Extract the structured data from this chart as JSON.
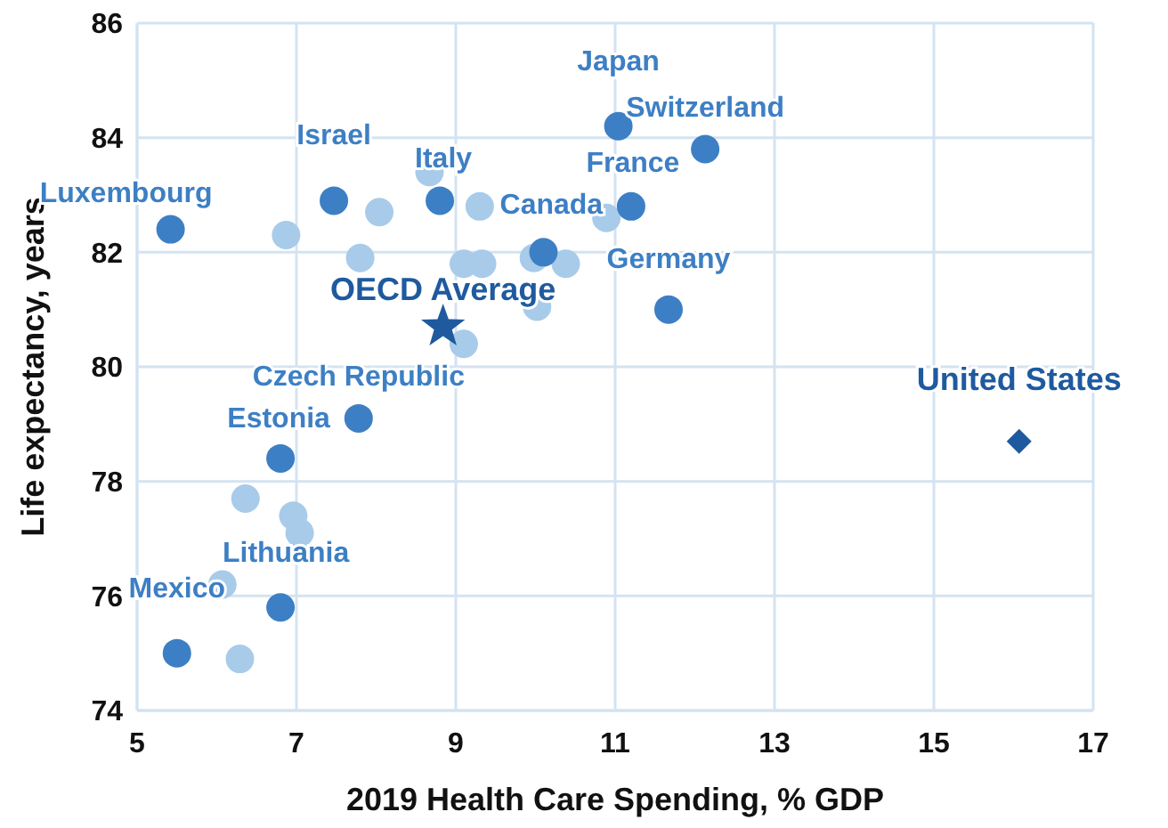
{
  "chart_data": {
    "type": "scatter",
    "xlabel": "2019 Health Care Spending, % GDP",
    "ylabel": "Life expectancy, years",
    "xlim": [
      5,
      17
    ],
    "xticks": [
      5,
      7,
      9,
      11,
      13,
      15,
      17
    ],
    "ylim": [
      74,
      86
    ],
    "yticks": [
      74,
      76,
      78,
      80,
      82,
      84,
      86
    ],
    "grid": true,
    "series": [
      {
        "color": "#a8cbea",
        "marker": "circle",
        "x": [
          6.87,
          8.04,
          7.8,
          8.67,
          9.3,
          9.1,
          9.33,
          9.98,
          10.38,
          10.02,
          9.1,
          10.89,
          6.36,
          6.96,
          7.04,
          6.07,
          6.29
        ],
        "values": [
          82.3,
          82.7,
          81.9,
          83.4,
          82.8,
          81.8,
          81.8,
          81.9,
          81.8,
          81.05,
          80.4,
          82.6,
          77.7,
          77.4,
          77.1,
          76.2,
          74.9
        ]
      },
      {
        "color": "#3d7fc4",
        "marker": "circle",
        "x": [
          5.42,
          7.47,
          8.8,
          11.04,
          12.13,
          11.2,
          11.67,
          10.1,
          7.78,
          6.8,
          6.8,
          5.5
        ],
        "values": [
          82.4,
          82.9,
          82.9,
          84.2,
          83.8,
          82.8,
          81.0,
          82.0,
          79.1,
          78.4,
          75.8,
          75.0
        ]
      },
      {
        "color": "#1f5a9e",
        "marker": "star",
        "x": [
          8.84
        ],
        "values": [
          80.7
        ]
      },
      {
        "color": "#1f5a9e",
        "marker": "diamond",
        "x": [
          16.07
        ],
        "values": [
          78.7
        ]
      }
    ],
    "annotations": [
      {
        "text": "Japan",
        "x": 11.04,
        "y": 84.2
      },
      {
        "text": "Switzerland",
        "x": 12.13,
        "y": 83.8
      },
      {
        "text": "Israel",
        "x": 7.47,
        "y": 82.9
      },
      {
        "text": "Italy",
        "x": 8.8,
        "y": 82.9
      },
      {
        "text": "Luxembourg",
        "x": 5.42,
        "y": 82.4
      },
      {
        "text": "Canada",
        "x": 10.89,
        "y": 82.6
      },
      {
        "text": "France",
        "x": 11.2,
        "y": 82.8
      },
      {
        "text": "Germany",
        "x": 11.67,
        "y": 81.0
      },
      {
        "text": "OECD Average",
        "x": 8.84,
        "y": 80.7
      },
      {
        "text": "Czech Republic",
        "x": 7.78,
        "y": 79.1
      },
      {
        "text": "Estonia",
        "x": 6.8,
        "y": 78.4
      },
      {
        "text": "Lithuania",
        "x": 6.8,
        "y": 75.8
      },
      {
        "text": "Mexico",
        "x": 5.5,
        "y": 75.0
      },
      {
        "text": "United States",
        "x": 16.07,
        "y": 78.7
      }
    ]
  }
}
